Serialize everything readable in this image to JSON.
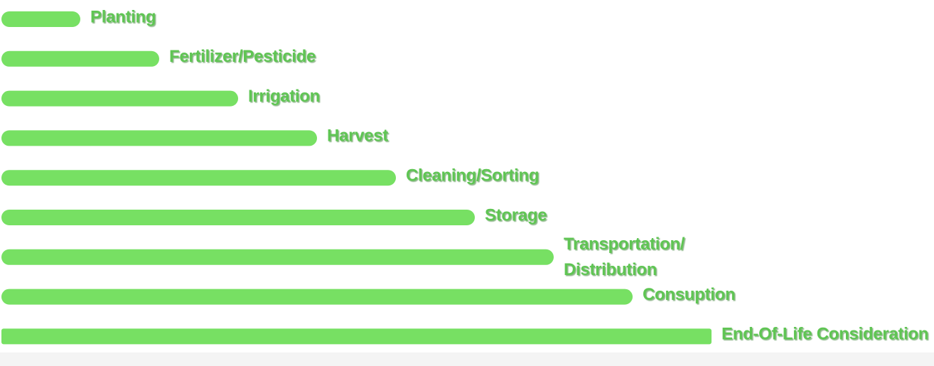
{
  "chart_data": {
    "type": "bar",
    "orientation": "horizontal",
    "categories": [
      "Planting",
      "Fertilizer/Pesticide",
      "Irrigation",
      "Harvest",
      "Cleaning/Sorting",
      "Storage",
      "Transportation/\nDistribution",
      "Consuption",
      "End-Of-Life Consideration"
    ],
    "values": [
      1,
      2,
      3,
      4,
      5,
      6,
      7,
      8,
      9
    ],
    "xlim": [
      0,
      9
    ],
    "grid": false,
    "axes_visible": false,
    "legend": "none",
    "title": "",
    "xlabel": "",
    "ylabel": ""
  },
  "colors": {
    "bar": "#77e063",
    "label": "#5ec552",
    "label_shadow": "#2f7a29",
    "footer": "#f4f4f4"
  }
}
